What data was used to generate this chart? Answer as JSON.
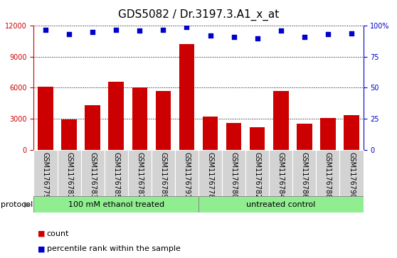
{
  "title": "GDS5082 / Dr.3197.3.A1_x_at",
  "samples": [
    "GSM1176779",
    "GSM1176781",
    "GSM1176783",
    "GSM1176785",
    "GSM1176787",
    "GSM1176789",
    "GSM1176791",
    "GSM1176778",
    "GSM1176780",
    "GSM1176782",
    "GSM1176784",
    "GSM1176786",
    "GSM1176788",
    "GSM1176790"
  ],
  "counts": [
    6100,
    2900,
    4300,
    6600,
    6050,
    5700,
    10200,
    3200,
    2600,
    2200,
    5700,
    2500,
    3050,
    3350
  ],
  "percentiles": [
    97,
    93,
    95,
    97,
    96,
    97,
    99,
    92,
    91,
    90,
    96,
    91,
    93,
    94
  ],
  "group1_label": "100 mM ethanol treated",
  "group2_label": "untreated control",
  "group1_count": 7,
  "group2_count": 7,
  "protocol_label": "protocol",
  "bar_color": "#cc0000",
  "dot_color": "#0000cc",
  "group_color": "#90ee90",
  "tick_bg_color": "#d3d3d3",
  "ylim_left": [
    0,
    12000
  ],
  "ylim_right": [
    0,
    100
  ],
  "yticks_left": [
    0,
    3000,
    6000,
    9000,
    12000
  ],
  "yticks_right": [
    0,
    25,
    50,
    75,
    100
  ],
  "legend_count_label": "count",
  "legend_pct_label": "percentile rank within the sample",
  "title_fontsize": 11,
  "tick_fontsize": 7,
  "label_fontsize": 8
}
